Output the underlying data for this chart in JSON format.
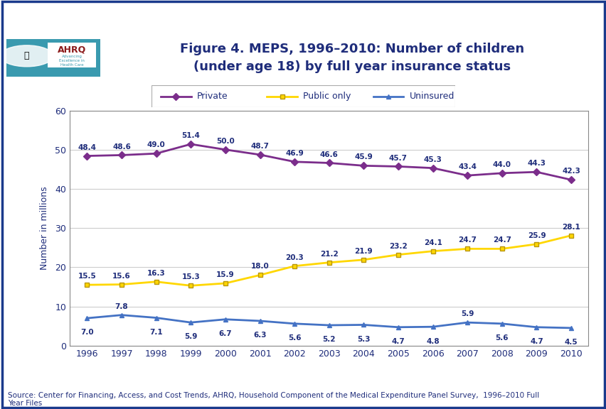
{
  "years": [
    1996,
    1997,
    1998,
    1999,
    2000,
    2001,
    2002,
    2003,
    2004,
    2005,
    2006,
    2007,
    2008,
    2009,
    2010
  ],
  "private": [
    48.4,
    48.6,
    49.0,
    51.4,
    50.0,
    48.7,
    46.9,
    46.6,
    45.9,
    45.7,
    45.3,
    43.4,
    44.0,
    44.3,
    42.3
  ],
  "public_only": [
    15.5,
    15.6,
    16.3,
    15.3,
    15.9,
    18.0,
    20.3,
    21.2,
    21.9,
    23.2,
    24.1,
    24.7,
    24.7,
    25.9,
    28.1
  ],
  "uninsured": [
    7.0,
    7.8,
    7.1,
    5.9,
    6.7,
    6.3,
    5.6,
    5.2,
    5.3,
    4.7,
    4.8,
    5.9,
    5.6,
    4.7,
    4.5
  ],
  "private_color": "#7B2D8B",
  "public_color": "#FFD700",
  "uninsured_color": "#4472C4",
  "title_line1": "Figure 4. MEPS, 1996–2010: Number of children",
  "title_line2": "(under age 18) by full year insurance status",
  "ylabel": "Number in millions",
  "ylim": [
    0,
    60
  ],
  "yticks": [
    0,
    10,
    20,
    30,
    40,
    50,
    60
  ],
  "source_text": "Source: Center for Financing, Access, and Cost Trends, AHRQ, Household Component of the Medical Expenditure Panel Survey,  1996–2010 Full\nYear Files",
  "title_color": "#1F2D7B",
  "bg_color": "#FFFFFF",
  "border_color": "#1A3A8C",
  "header_bar_color": "#1A3A8C",
  "logo_bg_color": "#3A9AAF",
  "grid_color": "#CCCCCC",
  "spine_color": "#888888"
}
